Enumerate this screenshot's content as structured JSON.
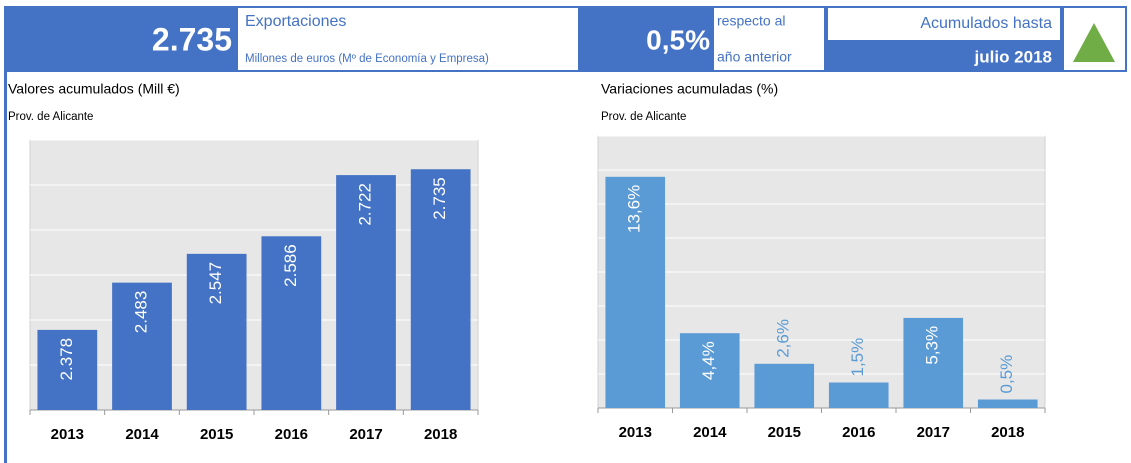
{
  "header": {
    "value": "2.735",
    "title": "Exportaciones",
    "subtitle": "Millones de euros (Mº de Economía y Empresa)",
    "change": "0,5%",
    "change_text": [
      "respecto al",
      "año anterior"
    ],
    "period_label": "Acumulados hasta",
    "period": "julio 2018"
  },
  "chart_data": [
    {
      "type": "bar",
      "title": "Valores acumulados (Mill €)",
      "subtitle": "Prov. de Alicante",
      "categories": [
        "2013",
        "2014",
        "2015",
        "2016",
        "2017",
        "2018"
      ],
      "values": [
        2378,
        2483,
        2547,
        2586,
        2722,
        2735
      ],
      "value_labels": [
        "2.378",
        "2.483",
        "2.547",
        "2.586",
        "2.722",
        "2.735"
      ],
      "color": "#4472c4",
      "ylim": [
        2200,
        2800
      ],
      "yticks": [
        2200,
        2300,
        2400,
        2500,
        2600,
        2700,
        2800
      ],
      "grid": true
    },
    {
      "type": "bar",
      "title": "Variaciones acumuladas (%)",
      "subtitle": "Prov. de Alicante",
      "categories": [
        "2013",
        "2014",
        "2015",
        "2016",
        "2017",
        "2018"
      ],
      "values": [
        13.6,
        4.4,
        2.6,
        1.5,
        5.3,
        0.5
      ],
      "value_labels": [
        "13,6%",
        "4,4%",
        "2,6%",
        "1,5%",
        "5,3%",
        "0,5%"
      ],
      "color": "#5b9bd5",
      "ylim": [
        0,
        16
      ],
      "yticks": [
        0,
        2,
        4,
        6,
        8,
        10,
        12,
        14,
        16
      ],
      "grid": true
    }
  ]
}
